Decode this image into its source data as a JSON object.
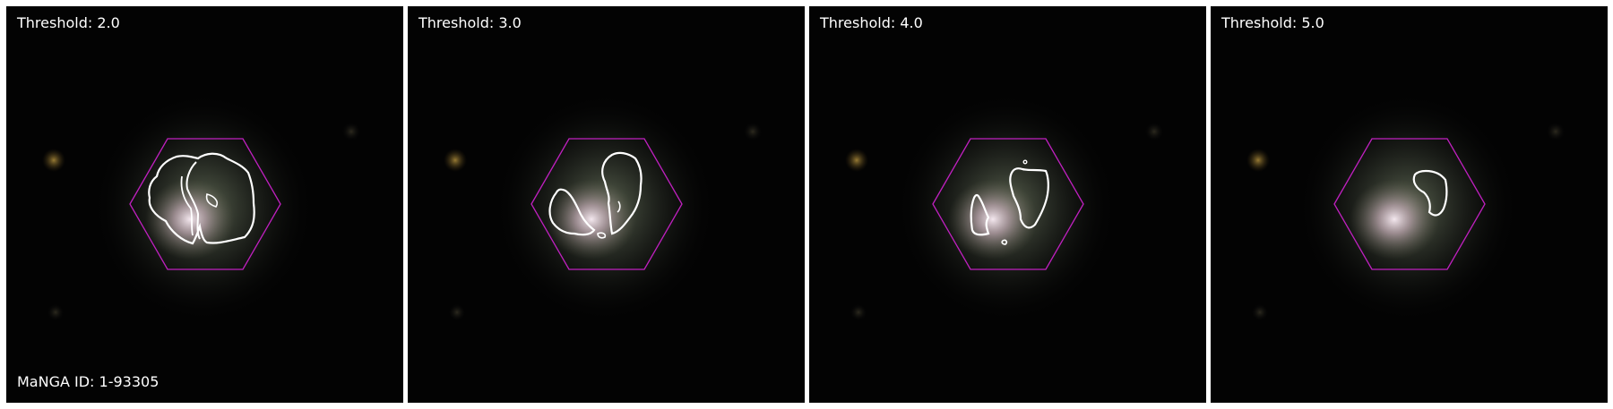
{
  "manga_id": "MaNGA ID: 1-93305",
  "panels": [
    {
      "threshold_label": "Threshold: 2.0"
    },
    {
      "threshold_label": "Threshold: 3.0"
    },
    {
      "threshold_label": "Threshold: 4.0"
    },
    {
      "threshold_label": "Threshold: 5.0"
    }
  ],
  "colors": {
    "background": "#000000",
    "hexagon": "#c020c0",
    "contour": "#ffffff",
    "label_text": "#ffffff"
  }
}
